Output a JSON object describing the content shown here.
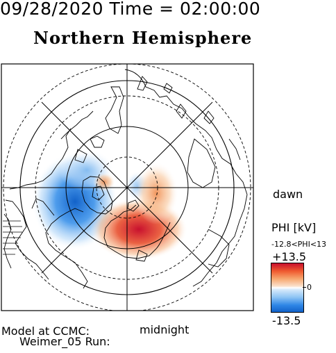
{
  "header": {
    "datetime": "09/28/2020 Time = 02:00:00",
    "hemisphere": "Northern Hemisphere"
  },
  "map": {
    "labels": {
      "dawn": "dawn",
      "midnight": "midnight"
    },
    "colors": {
      "positive": "#d7191c",
      "negative": "#1c6fd6",
      "frame": "#000000"
    }
  },
  "colorbar": {
    "title": "PHI [kV]",
    "range_text": "-12.8<PHI<13",
    "max_label": "+13.5",
    "zero_label": "0",
    "min_label": "-13.5"
  },
  "footer": {
    "line1": "Model at CCMC:",
    "line2": "Weimer_05 Run:"
  }
}
